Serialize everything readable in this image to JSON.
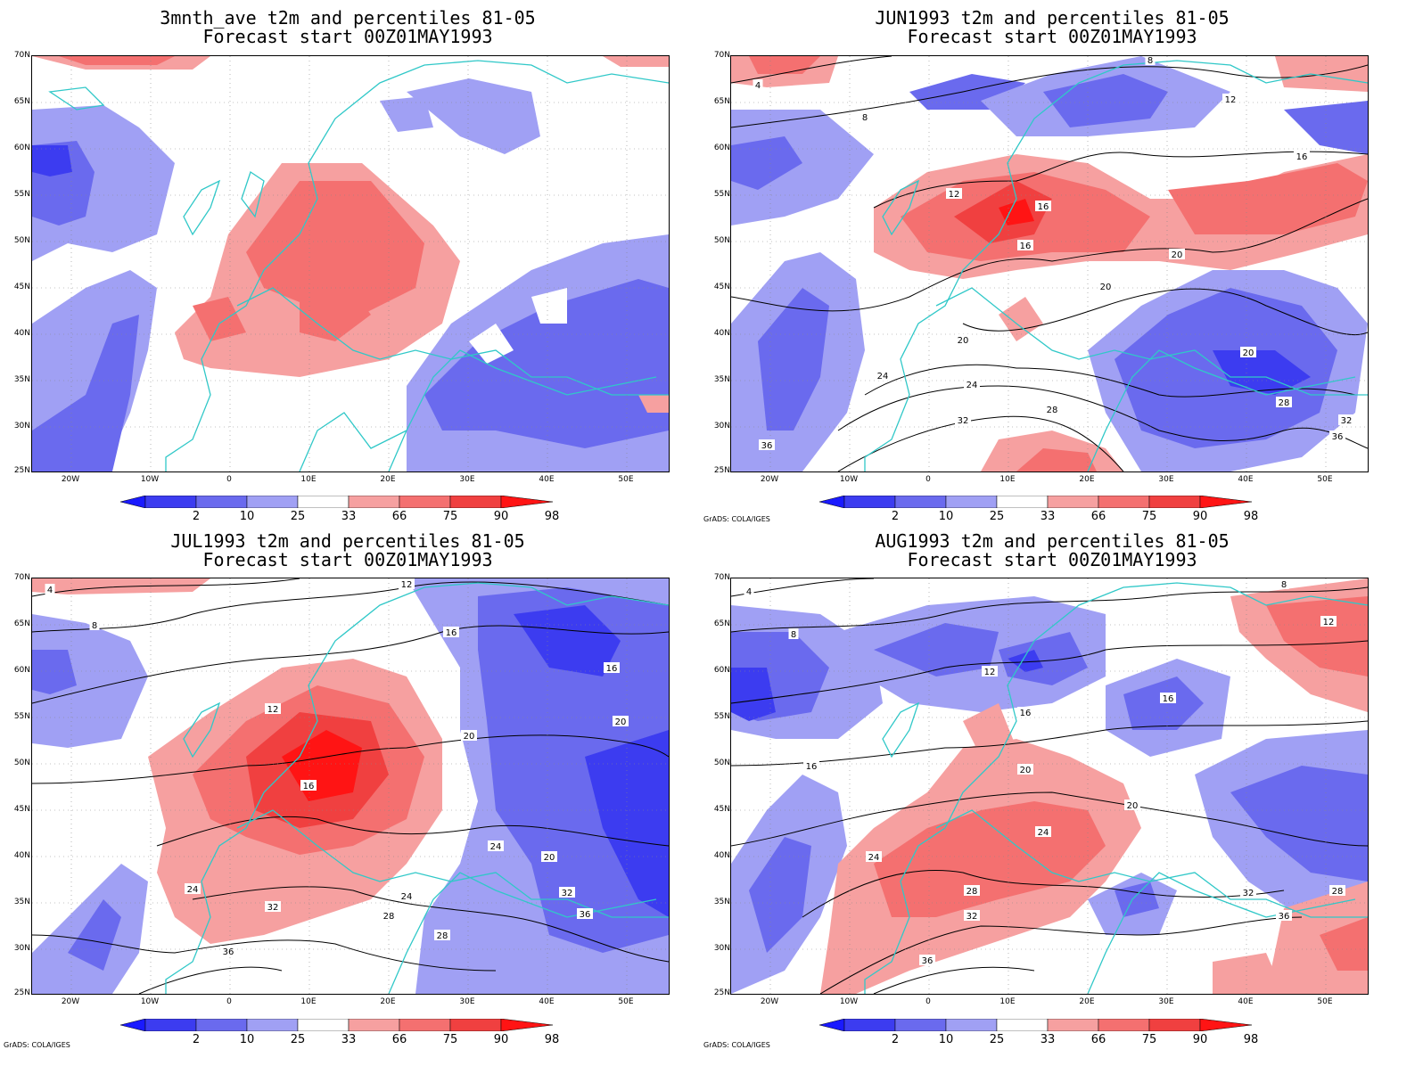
{
  "credit": "GrADS: COLA/IGES",
  "colorbar": {
    "labels": [
      "2",
      "10",
      "25",
      "33",
      "66",
      "75",
      "90",
      "98"
    ],
    "colors": [
      "#1a1aff",
      "#3c3cf0",
      "#6a6aee",
      "#a0a0f4",
      "#ffffff",
      "#f6a0a0",
      "#f47070",
      "#f04040",
      "#ff1414"
    ]
  },
  "axes": {
    "lat_labels": [
      "70N",
      "65N",
      "60N",
      "55N",
      "50N",
      "45N",
      "40N",
      "35N",
      "30N",
      "25N"
    ],
    "lon_labels": [
      "20W",
      "10W",
      "0",
      "10E",
      "20E",
      "30E",
      "40E",
      "50E"
    ]
  },
  "panels": [
    {
      "title1": "3mnth_ave t2m and percentiles 81-05",
      "title2": "Forecast start 00Z01MAY1993",
      "credit_shown": false,
      "contour_labels": []
    },
    {
      "title1": "JUN1993 t2m and percentiles 81-05",
      "title2": "Forecast start 00Z01MAY1993",
      "credit_shown": true,
      "contour_labels": [
        "4",
        "8",
        "8",
        "12",
        "12",
        "16",
        "16",
        "16",
        "20",
        "20",
        "20",
        "20",
        "24",
        "24",
        "28",
        "28",
        "32",
        "32",
        "36",
        "36"
      ]
    },
    {
      "title1": "JUL1993 t2m and percentiles 81-05",
      "title2": "Forecast start 00Z01MAY1993",
      "credit_shown": true,
      "contour_labels": [
        "4",
        "8",
        "12",
        "12",
        "16",
        "16",
        "16",
        "20",
        "20",
        "20",
        "24",
        "24",
        "24",
        "28",
        "28",
        "32",
        "32",
        "36",
        "36"
      ]
    },
    {
      "title1": "AUG1993 t2m and percentiles 81-05",
      "title2": "Forecast start 00Z01MAY1993",
      "credit_shown": true,
      "contour_labels": [
        "4",
        "8",
        "8",
        "12",
        "12",
        "16",
        "16",
        "16",
        "20",
        "20",
        "24",
        "24",
        "28",
        "28",
        "32",
        "32",
        "36",
        "36"
      ]
    }
  ]
}
